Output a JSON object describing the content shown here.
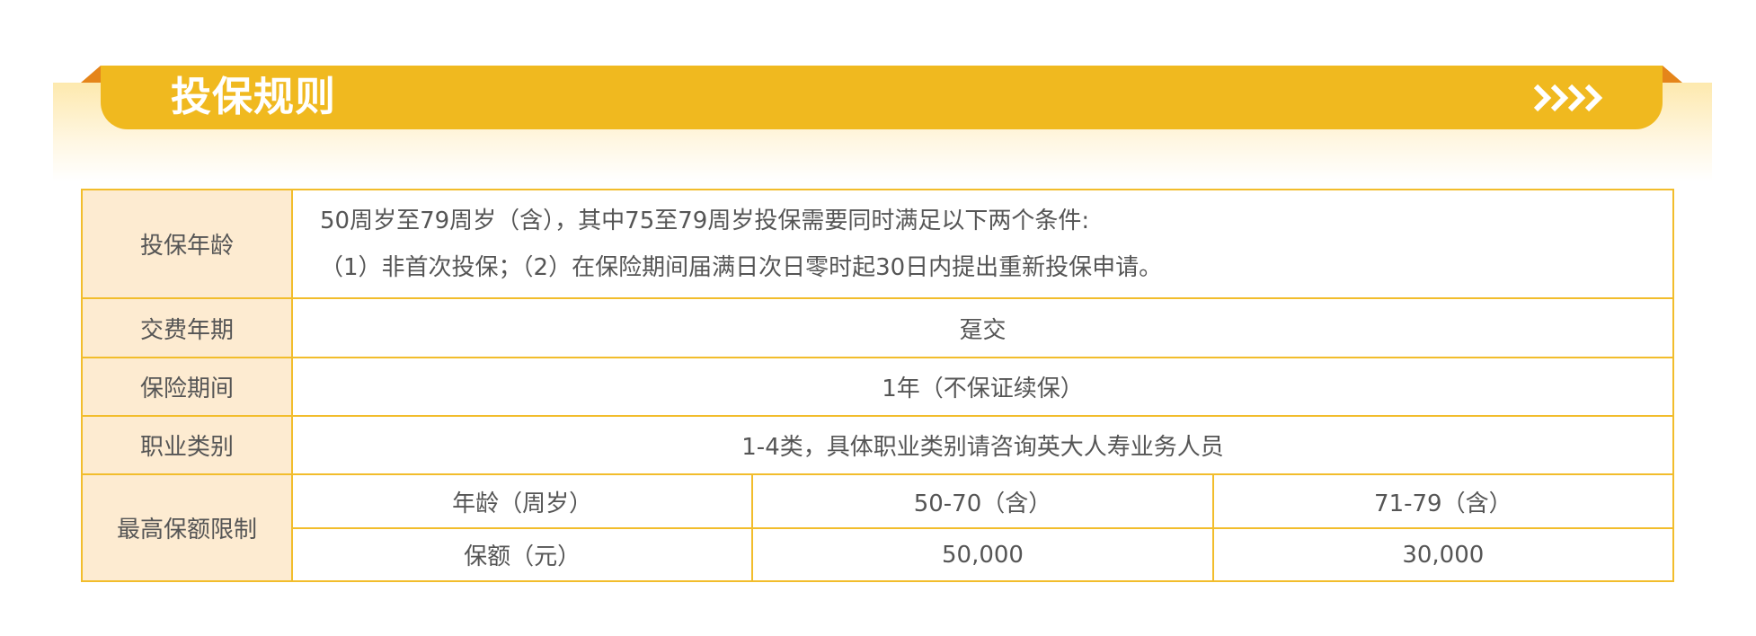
{
  "header": {
    "title": "投保规则",
    "arrow_icon": "chevrons-right-icon",
    "accent_color": "#f0b91f",
    "fold_color": "#e5851a"
  },
  "table": {
    "border_color": "#f2bd2c",
    "label_bg": "#fdebd1",
    "rows": [
      {
        "label": "投保年龄",
        "lines": [
          "50周岁至79周岁（含），其中75至79周岁投保需要同时满足以下两个条件:",
          "（1）非首次投保；（2）在保险期间届满日次日零时起30日内提出重新投保申请。"
        ]
      },
      {
        "label": "交费年期",
        "value": "趸交"
      },
      {
        "label": "保险期间",
        "value": "1年（不保证续保）"
      },
      {
        "label": "职业类别",
        "value": "1-4类，具体职业类别请咨询英大人寿业务人员"
      }
    ],
    "limit": {
      "label": "最高保额限制",
      "header": [
        "年龄（周岁）",
        "50-70（含）",
        "71-79（含）"
      ],
      "values": [
        "保额（元）",
        "50,000",
        "30,000"
      ]
    }
  }
}
